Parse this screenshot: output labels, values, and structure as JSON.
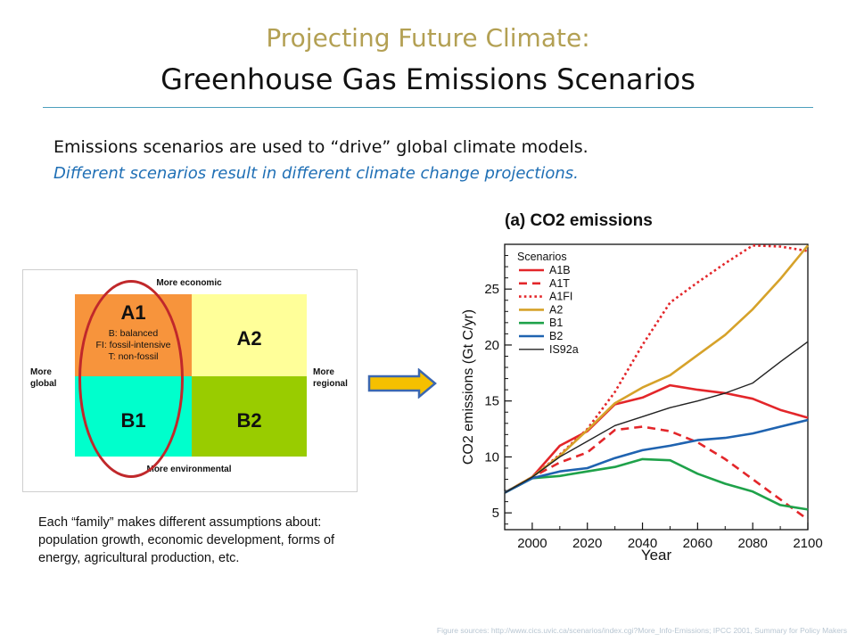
{
  "slide": {
    "title_line1": "Projecting Future Climate:",
    "title_line2": "Greenhouse Gas Emissions Scenarios",
    "subtitle": "Emissions scenarios are used to “drive” global climate models.",
    "subtitle_italic": "Different scenarios result in different climate change projections.",
    "caption": "Each “family” makes different assumptions about: population growth, economic development, forms of energy, agricultural production, etc.",
    "footer": "Figure sources: http://www.cics.uvic.ca/scenarios/index.cgi?More_Info-Emissions; IPCC 2001, Summary for Policy Makers"
  },
  "diagram": {
    "top_label": "More economic",
    "bottom_label": "More environmental",
    "left_label_1": "More",
    "left_label_2": "global",
    "right_label_1": "More",
    "right_label_2": "regional",
    "a1": "A1",
    "a1_details": [
      "B: balanced",
      "FI: fossil-intensive",
      "T: non-fossil"
    ],
    "a2": "A2",
    "b1": "B1",
    "b2": "B2",
    "colors": {
      "a1": "#f7943c",
      "a2": "#ffff99",
      "b1": "#00ffcc",
      "b2": "#99cc00",
      "ellipse": "#c0282b"
    }
  },
  "arrow": {
    "icon": "right-arrow-icon",
    "fill": "#f5c000",
    "stroke": "#3b67b0"
  },
  "chart_data": {
    "type": "line",
    "title": "(a) CO2 emissions",
    "xlabel": "Year",
    "ylabel": "CO2 emissions (Gt C/yr)",
    "xlim": [
      1990,
      2100
    ],
    "ylim": [
      3.5,
      29
    ],
    "xticks": [
      2000,
      2020,
      2040,
      2060,
      2080,
      2100
    ],
    "yticks": [
      5,
      10,
      15,
      20,
      25
    ],
    "legend_title": "Scenarios",
    "legend_position": "top-left",
    "series": [
      {
        "name": "A1B",
        "color": "#e3262a",
        "dash": "solid",
        "width": 2.6,
        "points": [
          [
            1990,
            6.8
          ],
          [
            2000,
            8.2
          ],
          [
            2010,
            11.0
          ],
          [
            2020,
            12.3
          ],
          [
            2030,
            14.7
          ],
          [
            2040,
            15.3
          ],
          [
            2050,
            16.4
          ],
          [
            2060,
            16.0
          ],
          [
            2070,
            15.7
          ],
          [
            2080,
            15.2
          ],
          [
            2090,
            14.2
          ],
          [
            2100,
            13.5
          ]
        ]
      },
      {
        "name": "A1T",
        "color": "#e3262a",
        "dash": "dashed",
        "width": 2.6,
        "points": [
          [
            1990,
            6.8
          ],
          [
            2000,
            8.2
          ],
          [
            2010,
            9.5
          ],
          [
            2020,
            10.4
          ],
          [
            2030,
            12.4
          ],
          [
            2040,
            12.7
          ],
          [
            2050,
            12.3
          ],
          [
            2060,
            11.3
          ],
          [
            2070,
            9.8
          ],
          [
            2080,
            8.0
          ],
          [
            2090,
            6.2
          ],
          [
            2100,
            4.4
          ]
        ]
      },
      {
        "name": "A1FI",
        "color": "#e3262a",
        "dash": "dotted",
        "width": 2.6,
        "points": [
          [
            1990,
            6.8
          ],
          [
            2000,
            8.2
          ],
          [
            2010,
            10.2
          ],
          [
            2020,
            12.5
          ],
          [
            2030,
            15.8
          ],
          [
            2040,
            20.0
          ],
          [
            2050,
            23.8
          ],
          [
            2060,
            25.6
          ],
          [
            2070,
            27.3
          ],
          [
            2080,
            28.9
          ],
          [
            2090,
            28.8
          ],
          [
            2100,
            28.4
          ]
        ]
      },
      {
        "name": "A2",
        "color": "#d6a22a",
        "dash": "solid",
        "width": 2.6,
        "points": [
          [
            1990,
            6.8
          ],
          [
            2000,
            8.2
          ],
          [
            2010,
            10.1
          ],
          [
            2020,
            12.4
          ],
          [
            2030,
            14.8
          ],
          [
            2040,
            16.2
          ],
          [
            2050,
            17.3
          ],
          [
            2060,
            19.1
          ],
          [
            2070,
            20.9
          ],
          [
            2080,
            23.2
          ],
          [
            2090,
            25.9
          ],
          [
            2100,
            28.9
          ]
        ]
      },
      {
        "name": "B1",
        "color": "#1fa24a",
        "dash": "solid",
        "width": 2.6,
        "points": [
          [
            1990,
            6.8
          ],
          [
            2000,
            8.1
          ],
          [
            2010,
            8.3
          ],
          [
            2020,
            8.7
          ],
          [
            2030,
            9.1
          ],
          [
            2040,
            9.8
          ],
          [
            2050,
            9.7
          ],
          [
            2060,
            8.5
          ],
          [
            2070,
            7.6
          ],
          [
            2080,
            6.9
          ],
          [
            2090,
            5.7
          ],
          [
            2100,
            5.3
          ]
        ]
      },
      {
        "name": "B2",
        "color": "#1f63b0",
        "dash": "solid",
        "width": 2.6,
        "points": [
          [
            1990,
            6.8
          ],
          [
            2000,
            8.1
          ],
          [
            2010,
            8.7
          ],
          [
            2020,
            9.0
          ],
          [
            2030,
            9.9
          ],
          [
            2040,
            10.6
          ],
          [
            2050,
            11.0
          ],
          [
            2060,
            11.5
          ],
          [
            2070,
            11.7
          ],
          [
            2080,
            12.1
          ],
          [
            2090,
            12.7
          ],
          [
            2100,
            13.3
          ]
        ]
      },
      {
        "name": "IS92a",
        "color": "#222222",
        "dash": "solid",
        "width": 1.4,
        "points": [
          [
            1990,
            6.8
          ],
          [
            2000,
            8.2
          ],
          [
            2010,
            10.0
          ],
          [
            2020,
            11.4
          ],
          [
            2030,
            12.8
          ],
          [
            2040,
            13.6
          ],
          [
            2050,
            14.4
          ],
          [
            2060,
            15.0
          ],
          [
            2070,
            15.7
          ],
          [
            2080,
            16.6
          ],
          [
            2090,
            18.5
          ],
          [
            2100,
            20.3
          ]
        ]
      }
    ]
  }
}
